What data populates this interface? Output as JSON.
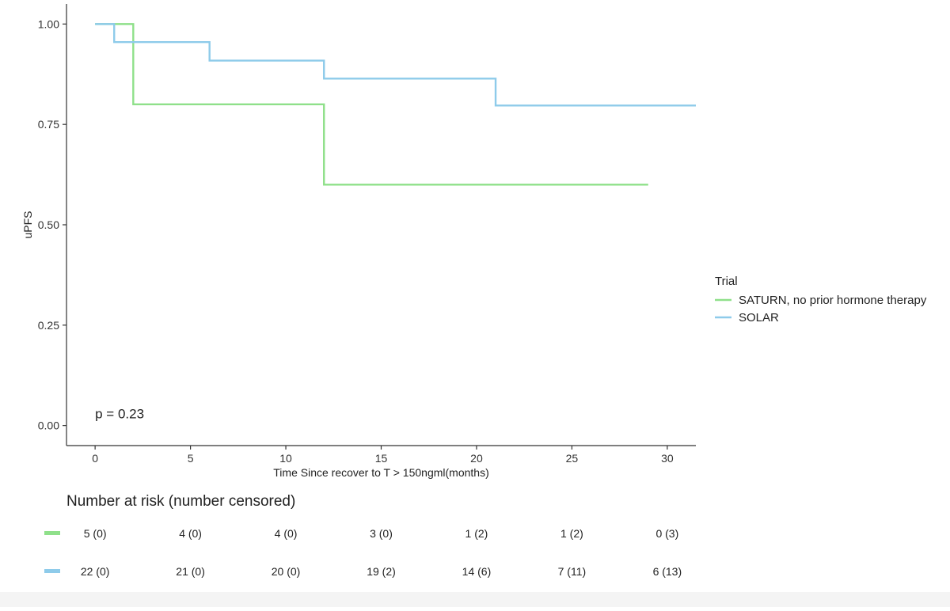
{
  "chart_data": {
    "type": "line",
    "title": "",
    "xlabel": "Time Since recover to T > 150ngml(months)",
    "ylabel": "uPFS",
    "xlim": [
      -1.5,
      31.5
    ],
    "ylim": [
      -0.05,
      1.05
    ],
    "x_ticks": [
      0,
      5,
      10,
      15,
      20,
      25,
      30
    ],
    "x_tick_labels": [
      "0",
      "5",
      "10",
      "15",
      "20",
      "25",
      "30"
    ],
    "y_ticks": [
      0.0,
      0.25,
      0.5,
      0.75,
      1.0
    ],
    "y_tick_labels": [
      "0.00",
      "0.25",
      "0.50",
      "0.75",
      "1.00"
    ],
    "grid": false,
    "legend": {
      "title": "Trial",
      "position": "right",
      "entries": [
        "SATURN, no prior hormone therapy",
        "SOLAR"
      ]
    },
    "annotation": "p = 0.23",
    "series": [
      {
        "name": "SATURN, no prior hormone therapy",
        "color": "#8fe08a",
        "step": "post",
        "x": [
          0,
          2,
          12,
          29
        ],
        "y": [
          1.0,
          0.8,
          0.6,
          0.6
        ]
      },
      {
        "name": "SOLAR",
        "color": "#8ecbea",
        "step": "post",
        "x": [
          0,
          1,
          6,
          12,
          21,
          31.5
        ],
        "y": [
          1.0,
          0.955,
          0.909,
          0.864,
          0.797,
          0.797
        ]
      }
    ],
    "risk_table": {
      "title": "Number at risk (number censored)",
      "times": [
        0,
        5,
        10,
        15,
        20,
        25,
        30
      ],
      "rows": [
        {
          "color": "#8fe08a",
          "values": [
            "5 (0)",
            "4 (0)",
            "4 (0)",
            "3 (0)",
            "1 (2)",
            "1 (2)",
            "0 (3)"
          ]
        },
        {
          "color": "#8ecbea",
          "values": [
            "22 (0)",
            "21 (0)",
            "20 (0)",
            "19 (2)",
            "14 (6)",
            "7 (11)",
            "6 (13)"
          ]
        }
      ]
    }
  }
}
